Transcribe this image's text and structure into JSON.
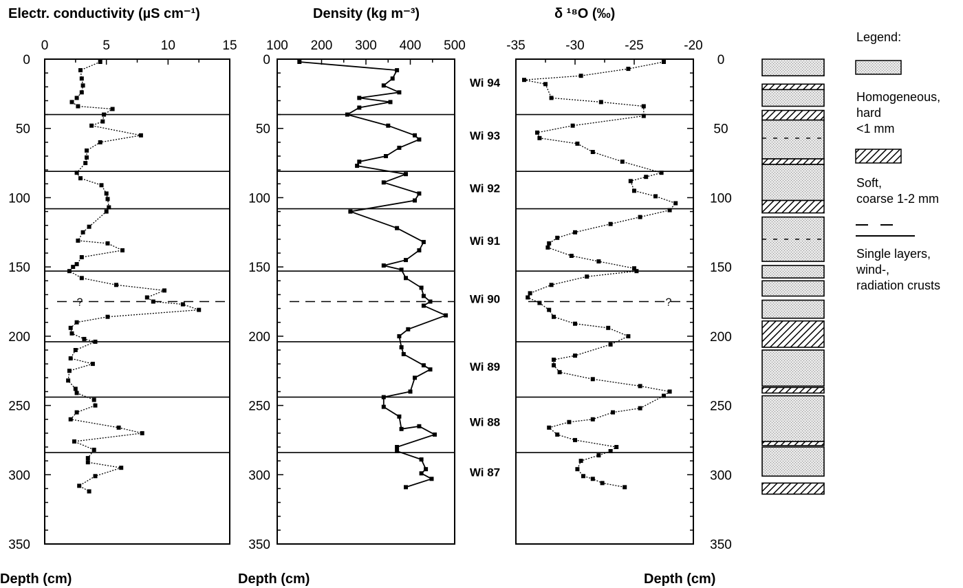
{
  "depth_label": "Depth (cm)",
  "legend": {
    "title": "Legend:",
    "items": [
      {
        "kind": "stipple",
        "lines": [
          "Homogeneous,",
          "hard",
          "<1 mm"
        ]
      },
      {
        "kind": "hatch",
        "lines": [
          "Soft,",
          "coarse 1-2  mm"
        ]
      },
      {
        "kind": "dash",
        "lines": [
          "Single layers,",
          "wind-,",
          "radiation crusts"
        ]
      }
    ]
  },
  "colors": {
    "ink": "#000000",
    "stipple_bg": "#e6e6e6",
    "stipple_dot": "#8a8a8a"
  },
  "chart_data": [
    {
      "type": "line",
      "title": "Electr. conductivity (µS cm⁻¹)",
      "xlim": [
        0,
        15
      ],
      "xticks": [
        "0",
        "5",
        "10",
        "15"
      ],
      "ylim": [
        0,
        350
      ],
      "yticks": [
        "0",
        "50",
        "100",
        "150",
        "200",
        "250",
        "300",
        "350"
      ],
      "yreversed": true,
      "line_style": "dotted",
      "points": [
        {
          "x": 4.5,
          "y": 2
        },
        {
          "x": 2.9,
          "y": 8
        },
        {
          "x": 3.0,
          "y": 14
        },
        {
          "x": 3.1,
          "y": 19
        },
        {
          "x": 3.0,
          "y": 24
        },
        {
          "x": 2.6,
          "y": 28
        },
        {
          "x": 2.2,
          "y": 31
        },
        {
          "x": 2.7,
          "y": 34
        },
        {
          "x": 5.5,
          "y": 36
        },
        {
          "x": 4.8,
          "y": 40
        },
        {
          "x": 4.7,
          "y": 45
        },
        {
          "x": 3.8,
          "y": 48
        },
        {
          "x": 7.8,
          "y": 55
        },
        {
          "x": 4.5,
          "y": 60
        },
        {
          "x": 3.4,
          "y": 66
        },
        {
          "x": 3.4,
          "y": 71
        },
        {
          "x": 3.3,
          "y": 75
        },
        {
          "x": 2.6,
          "y": 82
        },
        {
          "x": 2.9,
          "y": 86
        },
        {
          "x": 4.6,
          "y": 91
        },
        {
          "x": 5.0,
          "y": 97
        },
        {
          "x": 5.1,
          "y": 101
        },
        {
          "x": 5.2,
          "y": 107
        },
        {
          "x": 5.0,
          "y": 110
        },
        {
          "x": 3.6,
          "y": 121
        },
        {
          "x": 3.1,
          "y": 125
        },
        {
          "x": 2.7,
          "y": 131
        },
        {
          "x": 5.1,
          "y": 133
        },
        {
          "x": 6.3,
          "y": 138
        },
        {
          "x": 3.0,
          "y": 143
        },
        {
          "x": 2.6,
          "y": 148
        },
        {
          "x": 2.3,
          "y": 150
        },
        {
          "x": 2.0,
          "y": 153
        },
        {
          "x": 3.0,
          "y": 158
        },
        {
          "x": 5.8,
          "y": 163
        },
        {
          "x": 9.7,
          "y": 167
        },
        {
          "x": 8.3,
          "y": 172
        },
        {
          "x": 8.8,
          "y": 175
        },
        {
          "x": 11.2,
          "y": 177
        },
        {
          "x": 12.5,
          "y": 181
        },
        {
          "x": 5.1,
          "y": 186
        },
        {
          "x": 2.6,
          "y": 190
        },
        {
          "x": 2.1,
          "y": 194
        },
        {
          "x": 2.2,
          "y": 198
        },
        {
          "x": 3.2,
          "y": 202
        },
        {
          "x": 4.1,
          "y": 204
        },
        {
          "x": 2.5,
          "y": 210
        },
        {
          "x": 2.1,
          "y": 216
        },
        {
          "x": 3.9,
          "y": 220
        },
        {
          "x": 2.0,
          "y": 225
        },
        {
          "x": 1.9,
          "y": 232
        },
        {
          "x": 2.5,
          "y": 238
        },
        {
          "x": 2.6,
          "y": 241
        },
        {
          "x": 4.0,
          "y": 246
        },
        {
          "x": 4.1,
          "y": 250
        },
        {
          "x": 2.6,
          "y": 255
        },
        {
          "x": 2.1,
          "y": 260
        },
        {
          "x": 6.0,
          "y": 266
        },
        {
          "x": 7.9,
          "y": 270
        },
        {
          "x": 2.4,
          "y": 276
        },
        {
          "x": 4.0,
          "y": 282
        },
        {
          "x": 3.5,
          "y": 288
        },
        {
          "x": 3.5,
          "y": 291
        },
        {
          "x": 6.2,
          "y": 295
        },
        {
          "x": 4.1,
          "y": 301
        },
        {
          "x": 2.8,
          "y": 308
        },
        {
          "x": 3.6,
          "y": 312
        }
      ]
    },
    {
      "type": "line",
      "title": "Density (kg m⁻³)",
      "xlim": [
        100,
        500
      ],
      "xticks": [
        "100",
        "200",
        "300",
        "400",
        "500"
      ],
      "ylim": [
        0,
        350
      ],
      "yticks": [
        "0",
        "50",
        "100",
        "150",
        "200",
        "250",
        "300",
        "350"
      ],
      "yreversed": true,
      "line_style": "solid",
      "points": [
        {
          "x": 150,
          "y": 2
        },
        {
          "x": 370,
          "y": 8
        },
        {
          "x": 360,
          "y": 14
        },
        {
          "x": 340,
          "y": 19
        },
        {
          "x": 375,
          "y": 24
        },
        {
          "x": 285,
          "y": 28
        },
        {
          "x": 355,
          "y": 31
        },
        {
          "x": 285,
          "y": 35
        },
        {
          "x": 258,
          "y": 40
        },
        {
          "x": 350,
          "y": 48
        },
        {
          "x": 410,
          "y": 55
        },
        {
          "x": 420,
          "y": 58
        },
        {
          "x": 375,
          "y": 64
        },
        {
          "x": 345,
          "y": 70
        },
        {
          "x": 285,
          "y": 74
        },
        {
          "x": 280,
          "y": 77
        },
        {
          "x": 390,
          "y": 83
        },
        {
          "x": 340,
          "y": 89
        },
        {
          "x": 420,
          "y": 97
        },
        {
          "x": 410,
          "y": 102
        },
        {
          "x": 265,
          "y": 110
        },
        {
          "x": 370,
          "y": 122
        },
        {
          "x": 430,
          "y": 132
        },
        {
          "x": 420,
          "y": 138
        },
        {
          "x": 390,
          "y": 145
        },
        {
          "x": 340,
          "y": 149
        },
        {
          "x": 380,
          "y": 152
        },
        {
          "x": 390,
          "y": 158
        },
        {
          "x": 425,
          "y": 165
        },
        {
          "x": 430,
          "y": 171
        },
        {
          "x": 445,
          "y": 175
        },
        {
          "x": 430,
          "y": 178
        },
        {
          "x": 480,
          "y": 185
        },
        {
          "x": 395,
          "y": 195
        },
        {
          "x": 375,
          "y": 200
        },
        {
          "x": 380,
          "y": 208
        },
        {
          "x": 385,
          "y": 213
        },
        {
          "x": 430,
          "y": 221
        },
        {
          "x": 445,
          "y": 224
        },
        {
          "x": 410,
          "y": 230
        },
        {
          "x": 400,
          "y": 240
        },
        {
          "x": 340,
          "y": 244
        },
        {
          "x": 340,
          "y": 251
        },
        {
          "x": 375,
          "y": 258
        },
        {
          "x": 380,
          "y": 267
        },
        {
          "x": 420,
          "y": 265
        },
        {
          "x": 455,
          "y": 271
        },
        {
          "x": 370,
          "y": 280
        },
        {
          "x": 370,
          "y": 283
        },
        {
          "x": 425,
          "y": 289
        },
        {
          "x": 435,
          "y": 296
        },
        {
          "x": 425,
          "y": 299
        },
        {
          "x": 448,
          "y": 303
        },
        {
          "x": 390,
          "y": 309
        }
      ]
    },
    {
      "type": "line",
      "title": "δ ¹⁸O (‰)",
      "xlim": [
        -35,
        -20
      ],
      "xticks": [
        "-35",
        "-30",
        "-25",
        "-20"
      ],
      "ylim": [
        0,
        350
      ],
      "yticks": [
        "0",
        "50",
        "100",
        "150",
        "200",
        "250",
        "300",
        "350"
      ],
      "yreversed": true,
      "line_style": "dotted",
      "points": [
        {
          "x": -22.5,
          "y": 2
        },
        {
          "x": -25.5,
          "y": 7
        },
        {
          "x": -29.5,
          "y": 12
        },
        {
          "x": -34.3,
          "y": 15
        },
        {
          "x": -32.5,
          "y": 18
        },
        {
          "x": -32.0,
          "y": 28
        },
        {
          "x": -27.8,
          "y": 31
        },
        {
          "x": -24.2,
          "y": 34
        },
        {
          "x": -24.2,
          "y": 41
        },
        {
          "x": -30.2,
          "y": 48
        },
        {
          "x": -33.2,
          "y": 53
        },
        {
          "x": -33.0,
          "y": 57
        },
        {
          "x": -29.8,
          "y": 61
        },
        {
          "x": -28.5,
          "y": 67
        },
        {
          "x": -26.0,
          "y": 74
        },
        {
          "x": -22.7,
          "y": 82
        },
        {
          "x": -24.0,
          "y": 85
        },
        {
          "x": -25.3,
          "y": 88
        },
        {
          "x": -25.0,
          "y": 95
        },
        {
          "x": -23.2,
          "y": 99
        },
        {
          "x": -21.5,
          "y": 104
        },
        {
          "x": -22.0,
          "y": 109
        },
        {
          "x": -24.5,
          "y": 114
        },
        {
          "x": -27.0,
          "y": 119
        },
        {
          "x": -30.0,
          "y": 125
        },
        {
          "x": -31.5,
          "y": 129
        },
        {
          "x": -32.2,
          "y": 133
        },
        {
          "x": -32.3,
          "y": 136
        },
        {
          "x": -30.3,
          "y": 142
        },
        {
          "x": -28.0,
          "y": 146
        },
        {
          "x": -25.0,
          "y": 151
        },
        {
          "x": -24.8,
          "y": 153
        },
        {
          "x": -29.0,
          "y": 157
        },
        {
          "x": -32.0,
          "y": 163
        },
        {
          "x": -33.8,
          "y": 169
        },
        {
          "x": -34.0,
          "y": 172
        },
        {
          "x": -33.0,
          "y": 176
        },
        {
          "x": -32.2,
          "y": 181
        },
        {
          "x": -31.8,
          "y": 186
        },
        {
          "x": -30.0,
          "y": 191
        },
        {
          "x": -27.2,
          "y": 194
        },
        {
          "x": -25.5,
          "y": 200
        },
        {
          "x": -27.0,
          "y": 206
        },
        {
          "x": -30.0,
          "y": 214
        },
        {
          "x": -31.8,
          "y": 217
        },
        {
          "x": -31.8,
          "y": 221
        },
        {
          "x": -31.3,
          "y": 226
        },
        {
          "x": -28.5,
          "y": 231
        },
        {
          "x": -24.5,
          "y": 236
        },
        {
          "x": -22.0,
          "y": 240
        },
        {
          "x": -22.5,
          "y": 243
        },
        {
          "x": -24.5,
          "y": 252
        },
        {
          "x": -26.8,
          "y": 255
        },
        {
          "x": -28.5,
          "y": 260
        },
        {
          "x": -30.5,
          "y": 262
        },
        {
          "x": -32.2,
          "y": 266
        },
        {
          "x": -31.5,
          "y": 271
        },
        {
          "x": -30.0,
          "y": 275
        },
        {
          "x": -26.5,
          "y": 280
        },
        {
          "x": -27.0,
          "y": 283
        },
        {
          "x": -28.0,
          "y": 286
        },
        {
          "x": -29.5,
          "y": 290
        },
        {
          "x": -29.8,
          "y": 296
        },
        {
          "x": -29.3,
          "y": 301
        },
        {
          "x": -28.5,
          "y": 303
        },
        {
          "x": -27.7,
          "y": 306
        },
        {
          "x": -25.8,
          "y": 309
        }
      ]
    }
  ],
  "year_boundaries": [
    40,
    81,
    108,
    153,
    204,
    244,
    284
  ],
  "year_labels": [
    {
      "label": "Wi 94",
      "depth": 17
    },
    {
      "label": "Wi 93",
      "depth": 55
    },
    {
      "label": "Wi 92",
      "depth": 93
    },
    {
      "label": "Wi 91",
      "depth": 131
    },
    {
      "label": "Wi 90",
      "depth": 173
    },
    {
      "label": "Wi 89",
      "depth": 222
    },
    {
      "label": "Wi 88",
      "depth": 262
    },
    {
      "label": "Wi 87",
      "depth": 298
    }
  ],
  "uncertain_boundary": {
    "depth": 175,
    "label": "?"
  },
  "stratigraphy": [
    {
      "kind": "stipple",
      "top": 0,
      "bottom": 12
    },
    {
      "kind": "hatch",
      "top": 18,
      "bottom": 22
    },
    {
      "kind": "stipple",
      "top": 22,
      "bottom": 34
    },
    {
      "kind": "hatch",
      "top": 37,
      "bottom": 44
    },
    {
      "kind": "stipple",
      "top": 44,
      "bottom": 72
    },
    {
      "kind": "hatch",
      "top": 72,
      "bottom": 76
    },
    {
      "kind": "stipple",
      "top": 76,
      "bottom": 102
    },
    {
      "kind": "hatch",
      "top": 102,
      "bottom": 111
    },
    {
      "kind": "stipple",
      "top": 114,
      "bottom": 146
    },
    {
      "kind": "stipple",
      "top": 149,
      "bottom": 158
    },
    {
      "kind": "stipple",
      "top": 160,
      "bottom": 171
    },
    {
      "kind": "stipple",
      "top": 174,
      "bottom": 187
    },
    {
      "kind": "hatch",
      "top": 189,
      "bottom": 208
    },
    {
      "kind": "stipple",
      "top": 210,
      "bottom": 236
    },
    {
      "kind": "hatch",
      "top": 237,
      "bottom": 241
    },
    {
      "kind": "stipple",
      "top": 243,
      "bottom": 276
    },
    {
      "kind": "hatch",
      "top": 276,
      "bottom": 279
    },
    {
      "kind": "stipple",
      "top": 280,
      "bottom": 301
    },
    {
      "kind": "hatch",
      "top": 306,
      "bottom": 314
    }
  ],
  "strat_dashes": [
    {
      "depth": 57
    },
    {
      "depth": 130
    }
  ]
}
